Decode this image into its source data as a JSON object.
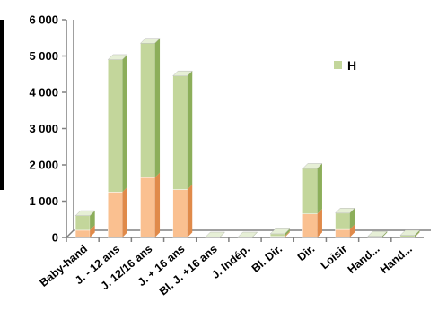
{
  "chart_data": {
    "type": "bar",
    "stacked": true,
    "style": "3d-columns",
    "categories": [
      "Baby-hand",
      "J. - 12 ans",
      "J. 12/16 ans",
      "J. + 16 ans",
      "Bl. J. +16 ans",
      "J. Indép.",
      "Bl. Dir.",
      "Dir.",
      "Loisir",
      "Hand...",
      "Hand..."
    ],
    "series": [
      {
        "values": [
          200,
          1250,
          1650,
          1320,
          0,
          0,
          30,
          650,
          220,
          0,
          10
        ]
      },
      {
        "name": "H",
        "values": [
          400,
          3650,
          3700,
          3130,
          10,
          10,
          70,
          1250,
          450,
          30,
          50
        ]
      }
    ],
    "y_ticks": [
      "0",
      "1 000",
      "2 000",
      "3 000",
      "4 000",
      "5 000",
      "6 000"
    ],
    "ylim": [
      0,
      6000
    ],
    "legend": {
      "position": "top-right",
      "entries": [
        "H"
      ]
    },
    "grid": false,
    "colors": {
      "series0_front": "#fac090",
      "series0_side": "#e08a4a",
      "series0_top": "#fde3cc",
      "series1_front": "#c3d69b",
      "series1_side": "#8cae5a",
      "series1_top": "#e6efd6",
      "axis": "#808080",
      "left_bar": "#000000"
    }
  }
}
